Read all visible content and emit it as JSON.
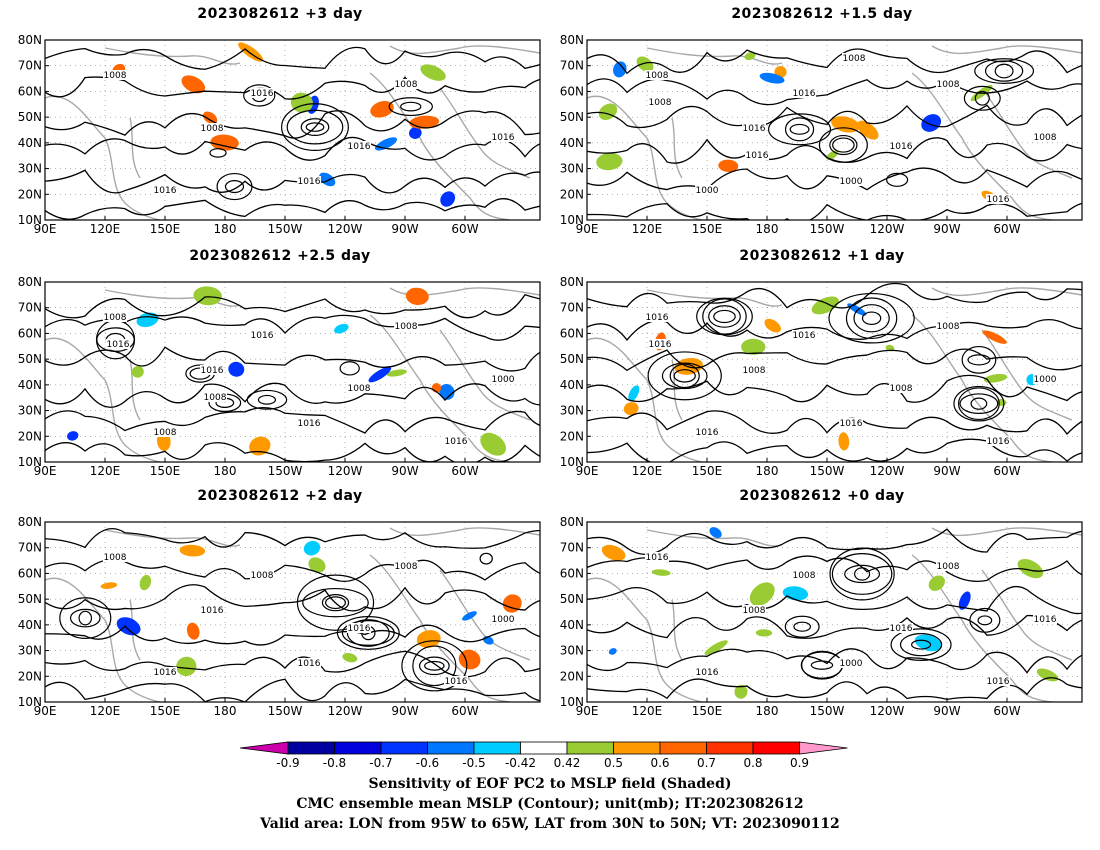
{
  "panels": [
    {
      "title": "2023082612 +3 day",
      "labels": [
        "1008",
        "1008",
        "1016",
        "1008",
        "1016",
        "1016",
        "1016",
        "1016"
      ]
    },
    {
      "title": "2023082612 +1.5 day",
      "labels": [
        "1008",
        "1016",
        "1000",
        "1008",
        "1008",
        "1000",
        "1016",
        "1016",
        "1016",
        "1008",
        "1016",
        "1008"
      ]
    },
    {
      "title": "2023082612 +2.5 day",
      "labels": [
        "1008",
        "1016",
        "1016",
        "1008",
        "1000",
        "1008",
        "1016",
        "1008",
        "1016",
        "1016",
        "1008"
      ]
    },
    {
      "title": "2023082612 +1 day",
      "labels": [
        "1016",
        "1008",
        "1016",
        "1008",
        "1000",
        "1016",
        "1016",
        "1008",
        "1016",
        "1016"
      ]
    },
    {
      "title": "2023082612 +2 day",
      "labels": [
        "1008",
        "1016",
        "1016",
        "1008",
        "1000",
        "1016",
        "1008",
        "1016",
        "1016"
      ]
    },
    {
      "title": "2023082612 +0 day",
      "labels": [
        "1016",
        "1008",
        "1000",
        "1008",
        "1016",
        "1016",
        "1008",
        "1016",
        "1016"
      ]
    }
  ],
  "lat_labels": [
    "80N",
    "70N",
    "60N",
    "50N",
    "40N",
    "30N",
    "20N",
    "10N"
  ],
  "lon_labels": [
    "90E",
    "120E",
    "150E",
    "180",
    "150W",
    "120W",
    "90W",
    "60W"
  ],
  "colorbar": {
    "ticks": [
      "-0.9",
      "-0.8",
      "-0.7",
      "-0.6",
      "-0.5",
      "-0.42",
      "0.42",
      "0.5",
      "0.6",
      "0.7",
      "0.8",
      "0.9"
    ],
    "colors": [
      "#cc00aa",
      "#0000a0",
      "#0000dd",
      "#0033ff",
      "#0077ff",
      "#00ccff",
      "#ffffff",
      "#99cc33",
      "#ff9900",
      "#ff6600",
      "#ff3300",
      "#ff0000",
      "#ff99cc"
    ]
  },
  "captions": [
    "Sensitivity of EOF PC2 to MSLP field (Shaded)",
    "CMC ensemble mean MSLP (Contour); unit(mb); IT:2023082612",
    "Valid area: LON from 95W to 65W, LAT from 30N to 50N; VT: 2023090112"
  ]
}
